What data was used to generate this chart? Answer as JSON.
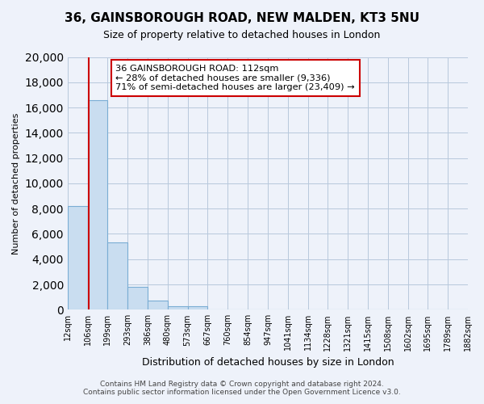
{
  "title": "36, GAINSBOROUGH ROAD, NEW MALDEN, KT3 5NU",
  "subtitle": "Size of property relative to detached houses in London",
  "xlabel": "Distribution of detached houses by size in London",
  "ylabel": "Number of detached properties",
  "bin_labels": [
    "12sqm",
    "106sqm",
    "199sqm",
    "293sqm",
    "386sqm",
    "480sqm",
    "573sqm",
    "667sqm",
    "760sqm",
    "854sqm",
    "947sqm",
    "1041sqm",
    "1134sqm",
    "1228sqm",
    "1321sqm",
    "1415sqm",
    "1508sqm",
    "1602sqm",
    "1695sqm",
    "1789sqm",
    "1882sqm"
  ],
  "bar_values": [
    8200,
    16600,
    5300,
    1800,
    750,
    280,
    250,
    0,
    0,
    0,
    0,
    0,
    0,
    0,
    0,
    0,
    0,
    0,
    0,
    0
  ],
  "bar_color": "#c9ddf0",
  "bar_edge_color": "#7aadd4",
  "vline_x": 1.06,
  "vline_color": "#cc0000",
  "annotation_title": "36 GAINSBOROUGH ROAD: 112sqm",
  "annotation_line1": "← 28% of detached houses are smaller (9,336)",
  "annotation_line2": "71% of semi-detached houses are larger (23,409) →",
  "ylim": [
    0,
    20000
  ],
  "yticks": [
    0,
    2000,
    4000,
    6000,
    8000,
    10000,
    12000,
    14000,
    16000,
    18000,
    20000
  ],
  "footer_line1": "Contains HM Land Registry data © Crown copyright and database right 2024.",
  "footer_line2": "Contains public sector information licensed under the Open Government Licence v3.0.",
  "bg_color": "#eef2fa",
  "plot_bg_color": "#eef2fa",
  "grid_color": "#b8c8dc"
}
